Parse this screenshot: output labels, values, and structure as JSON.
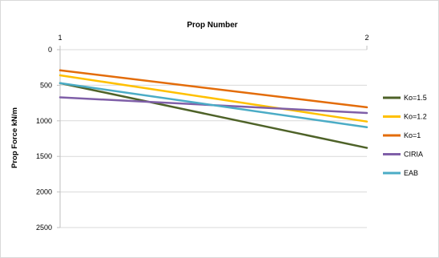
{
  "chart_data": {
    "type": "line",
    "title": "Prop Number",
    "xlabel": "",
    "ylabel": "Prop Force kN/m",
    "x_categories": [
      "1",
      "2"
    ],
    "x_axis_position": "top",
    "y_axis_inverted": true,
    "ylim": [
      0,
      2500
    ],
    "yticks": [
      "0",
      "500",
      "1000",
      "1500",
      "2000",
      "2500"
    ],
    "grid": true,
    "legend_position": "right",
    "series": [
      {
        "name": "Ko=1.5",
        "values": [
          470,
          1380
        ],
        "color": "#4e6228"
      },
      {
        "name": "Ko=1.2",
        "values": [
          360,
          1010
        ],
        "color": "#ffc000"
      },
      {
        "name": "Ko=1",
        "values": [
          290,
          810
        ],
        "color": "#e36c09"
      },
      {
        "name": "CIRIA",
        "values": [
          670,
          890
        ],
        "color": "#7f5fa8"
      },
      {
        "name": "EAB",
        "values": [
          470,
          1090
        ],
        "color": "#4bacc6"
      }
    ]
  }
}
